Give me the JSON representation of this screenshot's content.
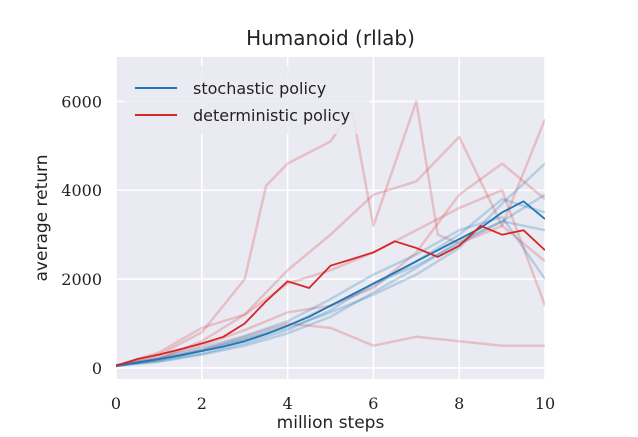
{
  "chart_data": {
    "type": "line",
    "title": "Humanoid (rllab)",
    "xlabel": "million steps",
    "ylabel": "average return",
    "xlim": [
      0,
      10
    ],
    "ylim": [
      -250,
      7000
    ],
    "xticks": [
      0,
      2,
      4,
      6,
      8,
      10
    ],
    "yticks": [
      0,
      2000,
      4000,
      6000
    ],
    "xtick_labels": [
      "0",
      "2",
      "4",
      "6",
      "8",
      "10"
    ],
    "ytick_labels": [
      "0",
      "2000",
      "4000",
      "6000"
    ],
    "grid": true,
    "background": "#eaeaf2",
    "legend_position": "top-left",
    "series": [
      {
        "name": "stochastic policy",
        "color": "#1f77b4",
        "x": [
          0,
          0.5,
          1,
          1.5,
          2,
          2.5,
          3,
          3.5,
          4,
          4.5,
          5,
          5.5,
          6,
          6.5,
          7,
          7.5,
          8,
          8.5,
          9,
          9.5,
          10
        ],
        "y": [
          50,
          120,
          200,
          280,
          380,
          480,
          600,
          760,
          950,
          1150,
          1400,
          1650,
          1900,
          2150,
          2400,
          2650,
          2900,
          3150,
          3500,
          3750,
          3350
        ]
      },
      {
        "name": "deterministic policy",
        "color": "#d62728",
        "x": [
          0,
          0.5,
          1,
          1.5,
          2,
          2.5,
          3,
          3.5,
          4,
          4.5,
          5,
          5.5,
          6,
          6.5,
          7,
          7.5,
          8,
          8.5,
          9,
          9.5,
          10
        ],
        "y": [
          50,
          200,
          300,
          420,
          550,
          700,
          1000,
          1500,
          1950,
          1800,
          2300,
          2450,
          2600,
          2850,
          2700,
          2500,
          2750,
          3200,
          3000,
          3100,
          2650
        ]
      }
    ],
    "trial_series_stochastic": [
      {
        "x": [
          0,
          1,
          2,
          3,
          4,
          5,
          6,
          7,
          8,
          9,
          10
        ],
        "y": [
          50,
          150,
          320,
          550,
          850,
          1300,
          1900,
          2300,
          2800,
          3300,
          3900
        ]
      },
      {
        "x": [
          0,
          1,
          2,
          3,
          4,
          5,
          6,
          7,
          8,
          9,
          10
        ],
        "y": [
          40,
          180,
          380,
          640,
          900,
          1250,
          1650,
          2100,
          2700,
          3700,
          4600
        ]
      },
      {
        "x": [
          0,
          1,
          2,
          3,
          4,
          5,
          6,
          7,
          8,
          9,
          10
        ],
        "y": [
          60,
          220,
          450,
          720,
          1050,
          1550,
          2100,
          2550,
          3100,
          3400,
          2000
        ]
      },
      {
        "x": [
          0,
          1,
          2,
          3,
          4,
          5,
          6,
          7,
          8,
          9,
          10
        ],
        "y": [
          50,
          140,
          300,
          500,
          780,
          1150,
          1700,
          2250,
          2850,
          3300,
          3100
        ]
      },
      {
        "x": [
          0,
          1,
          2,
          3,
          4,
          5,
          6,
          7,
          8,
          9,
          10
        ],
        "y": [
          55,
          200,
          400,
          650,
          950,
          1400,
          1850,
          2400,
          3000,
          3800,
          3500
        ]
      }
    ],
    "trial_series_deterministic": [
      {
        "x": [
          0,
          1,
          2,
          3,
          3.5,
          4,
          5,
          5.5,
          6,
          7,
          7.5,
          8,
          9,
          10
        ],
        "y": [
          50,
          300,
          800,
          2000,
          4100,
          4600,
          5100,
          5800,
          3200,
          6000,
          3000,
          2800,
          3200,
          5600
        ]
      },
      {
        "x": [
          0,
          1,
          2,
          3,
          4,
          5,
          6,
          7,
          8,
          9,
          10
        ],
        "y": [
          40,
          200,
          600,
          1200,
          2200,
          3000,
          3900,
          4200,
          5200,
          3200,
          2400
        ]
      },
      {
        "x": [
          0,
          1,
          2,
          3,
          4,
          5,
          6,
          7,
          8,
          9,
          10
        ],
        "y": [
          50,
          250,
          500,
          850,
          1250,
          1400,
          1800,
          2600,
          3900,
          4600,
          3800
        ]
      },
      {
        "x": [
          0,
          1,
          2,
          3,
          4,
          5,
          6,
          7,
          8,
          9,
          10
        ],
        "y": [
          45,
          350,
          900,
          1200,
          1900,
          2200,
          2600,
          3100,
          3600,
          4000,
          1400
        ]
      },
      {
        "x": [
          0,
          1,
          2,
          3,
          4,
          5,
          6,
          7,
          8,
          9,
          10
        ],
        "y": [
          60,
          180,
          400,
          700,
          1000,
          900,
          500,
          700,
          600,
          500,
          500
        ]
      }
    ]
  }
}
